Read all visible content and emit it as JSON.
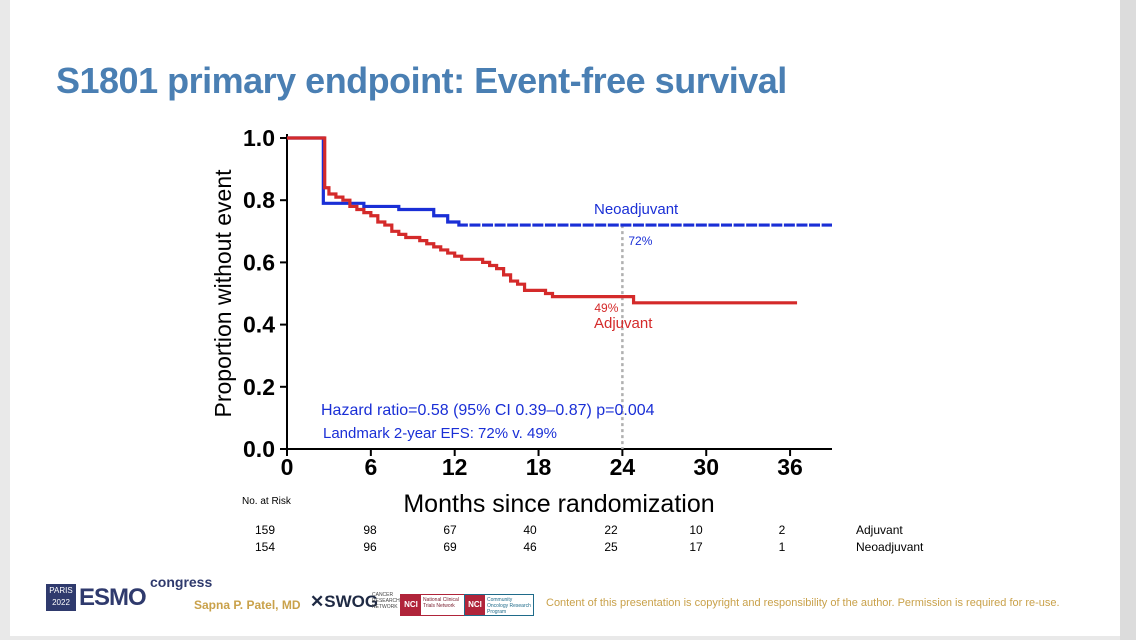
{
  "slide": {
    "title": "S1801 primary endpoint: Event-free survival",
    "presenter": "Sapna P. Patel, MD",
    "copyright": "Content of this presentation is copyright and responsibility of the author. Permission is required for re-use.",
    "logos": {
      "esmo_city": "PARIS",
      "esmo_year": "2022",
      "esmo_word": "ESMO",
      "esmo_congress": "congress",
      "swog": "SWOG",
      "swog_sub": "CANCER RESEARCH NETWORK",
      "nci_tag": "NCI",
      "nci1_text": "National Clinical Trials Network",
      "nci2_text": "Community Oncology Research Program"
    },
    "colors": {
      "title": "#4a7fb3",
      "neoadjuvant": "#1a2fd6",
      "adjuvant": "#d42a2a",
      "landmark_line": "#b0b0b0",
      "footer_text": "#c9a14a"
    }
  },
  "chart_data": {
    "type": "line",
    "subtype": "kaplan-meier",
    "xlabel": "Months since randomization",
    "ylabel": "Proportion without event",
    "xlim": [
      0,
      39
    ],
    "ylim": [
      0,
      1
    ],
    "x_ticks": [
      "0",
      "6",
      "12",
      "18",
      "24",
      "30",
      "36"
    ],
    "y_ticks": [
      "0.0",
      "0.2",
      "0.4",
      "0.6",
      "0.8",
      "1.0"
    ],
    "grid": false,
    "series": [
      {
        "name": "Neoadjuvant",
        "color": "#1a2fd6",
        "points": [
          [
            0,
            1.0
          ],
          [
            2.6,
            1.0
          ],
          [
            2.6,
            0.79
          ],
          [
            5,
            0.79
          ],
          [
            5.5,
            0.78
          ],
          [
            7.5,
            0.78
          ],
          [
            8,
            0.77
          ],
          [
            9.5,
            0.77
          ],
          [
            10.5,
            0.75
          ],
          [
            11.5,
            0.73
          ],
          [
            12,
            0.73
          ],
          [
            12.3,
            0.72
          ],
          [
            39,
            0.72
          ]
        ],
        "annotation": "72%"
      },
      {
        "name": "Adjuvant",
        "color": "#d42a2a",
        "points": [
          [
            0,
            1.0
          ],
          [
            2.6,
            1.0
          ],
          [
            2.7,
            0.84
          ],
          [
            3,
            0.82
          ],
          [
            3.5,
            0.81
          ],
          [
            4,
            0.8
          ],
          [
            4.5,
            0.78
          ],
          [
            5,
            0.77
          ],
          [
            5.5,
            0.76
          ],
          [
            6,
            0.75
          ],
          [
            6.5,
            0.73
          ],
          [
            7,
            0.72
          ],
          [
            7.5,
            0.7
          ],
          [
            8,
            0.69
          ],
          [
            8.5,
            0.68
          ],
          [
            9.5,
            0.67
          ],
          [
            10,
            0.66
          ],
          [
            10.5,
            0.65
          ],
          [
            11,
            0.64
          ],
          [
            11.5,
            0.63
          ],
          [
            12,
            0.62
          ],
          [
            12.5,
            0.61
          ],
          [
            14,
            0.6
          ],
          [
            14.5,
            0.59
          ],
          [
            15,
            0.58
          ],
          [
            15.5,
            0.56
          ],
          [
            16,
            0.54
          ],
          [
            16.5,
            0.53
          ],
          [
            17,
            0.51
          ],
          [
            18.5,
            0.5
          ],
          [
            19,
            0.49
          ],
          [
            24.8,
            0.49
          ],
          [
            24.8,
            0.47
          ],
          [
            36.5,
            0.47
          ]
        ],
        "annotation": "49%"
      }
    ],
    "landmark": {
      "x": 24
    },
    "annotations": {
      "hazard_ratio": "Hazard ratio=0.58 (95% CI 0.39–0.87) p=0.004",
      "landmark_text": "Landmark 2-year EFS: 72% v. 49%"
    },
    "risk_table": {
      "header": "No. at Risk",
      "rows": [
        {
          "label": "Adjuvant",
          "values": [
            "159",
            "98",
            "67",
            "40",
            "22",
            "10",
            "2"
          ]
        },
        {
          "label": "Neoadjuvant",
          "values": [
            "154",
            "96",
            "69",
            "46",
            "25",
            "17",
            "1"
          ]
        }
      ]
    }
  }
}
